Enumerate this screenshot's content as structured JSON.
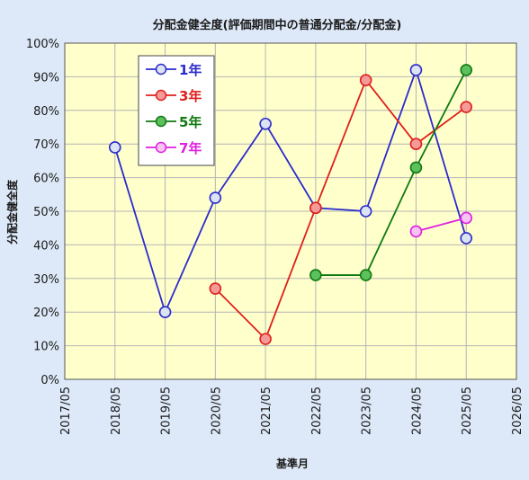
{
  "chart_data": {
    "type": "line",
    "title": "分配金健全度(評価期間中の普通分配金/分配金)",
    "xlabel": "基準月",
    "ylabel": "分配金健全度",
    "ylim": [
      0,
      100
    ],
    "y_ticks": [
      "0%",
      "10%",
      "20%",
      "30%",
      "40%",
      "50%",
      "60%",
      "70%",
      "80%",
      "90%",
      "100%"
    ],
    "x_ticks": [
      "2017/05",
      "2018/05",
      "2019/05",
      "2020/05",
      "2021/05",
      "2022/05",
      "2023/05",
      "2024/05",
      "2025/05",
      "2026/05"
    ],
    "grid": true,
    "legend_position": "top-left",
    "series": [
      {
        "name": "1年",
        "color": "#2b2bcc",
        "marker_fill": "#dce3f3",
        "points": [
          {
            "x": "2018/05",
            "y": 69
          },
          {
            "x": "2019/05",
            "y": 20
          },
          {
            "x": "2020/05",
            "y": 54
          },
          {
            "x": "2021/05",
            "y": 76
          },
          {
            "x": "2022/05",
            "y": 51
          },
          {
            "x": "2023/05",
            "y": 50
          },
          {
            "x": "2024/05",
            "y": 92
          },
          {
            "x": "2025/05",
            "y": 42
          }
        ]
      },
      {
        "name": "3年",
        "color": "#e0201c",
        "marker_fill": "#f49a98",
        "points": [
          {
            "x": "2020/05",
            "y": 27
          },
          {
            "x": "2021/05",
            "y": 12
          },
          {
            "x": "2022/05",
            "y": 51
          },
          {
            "x": "2023/05",
            "y": 89
          },
          {
            "x": "2024/05",
            "y": 70
          },
          {
            "x": "2025/05",
            "y": 81
          }
        ]
      },
      {
        "name": "5年",
        "color": "#0f7a0f",
        "marker_fill": "#5cc05c",
        "points": [
          {
            "x": "2022/05",
            "y": 31
          },
          {
            "x": "2023/05",
            "y": 31
          },
          {
            "x": "2024/05",
            "y": 63
          },
          {
            "x": "2025/05",
            "y": 92
          }
        ]
      },
      {
        "name": "7年",
        "color": "#e020e0",
        "marker_fill": "#f5c4f5",
        "points": [
          {
            "x": "2024/05",
            "y": 44
          },
          {
            "x": "2025/05",
            "y": 48
          }
        ]
      }
    ]
  },
  "colors": {
    "plot_background": "#ffffcc",
    "page_background": "#dde9f8",
    "grid": "#b4b4b4"
  }
}
